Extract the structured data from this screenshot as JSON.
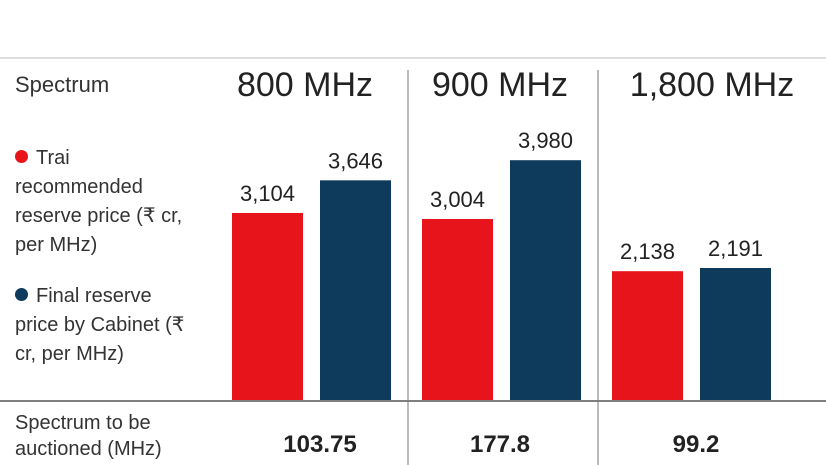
{
  "chart_data": {
    "type": "bar",
    "header_label": "Spectrum",
    "categories": [
      "800 MHz",
      "900 MHz",
      "1,800 MHz"
    ],
    "series": [
      {
        "name": "Trai recommended reserve price (₹ cr, per MHz)",
        "color": "#e8141c",
        "values": [
          3104,
          3004,
          2138
        ],
        "value_labels": [
          "3,104",
          "3,004",
          "2,138"
        ]
      },
      {
        "name": "Final reserve price by Cabinet (₹ cr, per MHz)",
        "color": "#0e3a5c",
        "values": [
          3646,
          3980,
          2191
        ],
        "value_labels": [
          "3,646",
          "3,980",
          "2,191"
        ]
      }
    ],
    "ylim": [
      0,
      4000
    ],
    "footer_label": "Spectrum to be auctioned (MHz)",
    "footer_values": [
      "103.75",
      "177.8",
      "99.2"
    ]
  }
}
